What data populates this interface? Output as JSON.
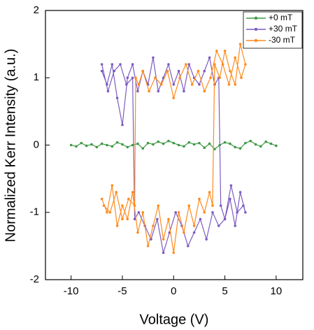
{
  "chart_data": {
    "type": "line",
    "x_label": "Voltage (V)",
    "y_label": "Normalized Kerr Intensity (a.u.)",
    "xlim": [
      -12.5,
      12.6
    ],
    "xticks": [
      -10,
      -5,
      0,
      5,
      10
    ],
    "ylim": [
      -2,
      2
    ],
    "yticks": [
      -2,
      -1,
      0,
      1,
      2
    ],
    "legend": "upper right",
    "series": [
      {
        "name": "+0 mT",
        "color": "#3f9a45",
        "x": [
          -10,
          -9.5,
          -9,
          -8.5,
          -8,
          -7.5,
          -7,
          -6.5,
          -6,
          -5.5,
          -5,
          -4.5,
          -4,
          -3.5,
          -3,
          -2.5,
          -2,
          -1.5,
          -1,
          -0.5,
          0,
          0.5,
          1,
          1.5,
          2,
          2.5,
          3,
          3.5,
          4,
          4.5,
          5,
          5.5,
          6,
          6.5,
          7,
          7.5,
          8,
          8.5,
          9,
          9.5,
          10
        ],
        "values": [
          0,
          -0.02,
          0.03,
          -0.01,
          0.01,
          -0.03,
          0.02,
          0,
          -0.02,
          0.04,
          0.01,
          -0.03,
          0,
          0.02,
          -0.05,
          0.03,
          0.01,
          0.05,
          0.02,
          0.06,
          0.03,
          0,
          -0.02,
          0.04,
          0.01,
          0.03,
          -0.04,
          0.02,
          -0.06,
          0,
          0.04,
          0.02,
          -0.03,
          -0.05,
          0.03,
          0.06,
          0.01,
          -0.02,
          0.05,
          0.02,
          -0.01
        ]
      },
      {
        "name": "+30 mT",
        "color": "#7c5cc2",
        "x": [
          -7,
          -6.5,
          -6,
          -5.5,
          -5,
          -4.5,
          -4,
          -3.5,
          -3,
          -2.5,
          -2,
          -1.5,
          -1,
          -0.5,
          0,
          0.5,
          1,
          1.5,
          2,
          2.5,
          3,
          3.5,
          4,
          4.4,
          4.6,
          5,
          5.5,
          6,
          6.5,
          7,
          6.8,
          6.2,
          5.6,
          5,
          4.4,
          3.8,
          3.2,
          2.6,
          2,
          1.4,
          0.8,
          0.2,
          -0.4,
          -1,
          -1.6,
          -2.2,
          -2.8,
          -3.4,
          -3.8,
          -4,
          -4.6,
          -5.2,
          -5.8,
          -6.4,
          -7
        ],
        "values": [
          1.1,
          0.9,
          1.2,
          0.7,
          0.3,
          1.0,
          1.2,
          0.8,
          1.1,
          0.9,
          1.3,
          0.8,
          1.0,
          1.2,
          0.9,
          1.1,
          0.8,
          1.2,
          1.0,
          0.9,
          1.1,
          1.3,
          0.9,
          1.0,
          -0.9,
          -1.1,
          -0.8,
          -1.2,
          -0.7,
          -1.0,
          -0.9,
          -1.0,
          -0.6,
          -1.1,
          -1.2,
          -1.0,
          -1.4,
          -1.1,
          -1.3,
          -1.5,
          -1.2,
          -1.0,
          -1.3,
          -1.6,
          -1.1,
          -1.4,
          -1.2,
          -1.0,
          -1.1,
          1.0,
          0.9,
          1.2,
          1.1,
          0.8,
          1.2
        ]
      },
      {
        "name": "-30 mT",
        "color": "#ff8a1c",
        "x": [
          -7,
          -6.5,
          -6,
          -5.5,
          -5,
          -4.5,
          -4,
          -3.5,
          -3,
          -2.5,
          -2,
          -1.5,
          -1,
          -0.5,
          0,
          0.5,
          1,
          1.5,
          2,
          2.5,
          3,
          3.5,
          3.8,
          4,
          4.5,
          5,
          5.5,
          6,
          6.5,
          7,
          6.6,
          6,
          5.4,
          4.8,
          4.2,
          3.6,
          3,
          2.4,
          1.8,
          1.2,
          0.6,
          0,
          -0.6,
          -1.2,
          -1.8,
          -2.4,
          -3,
          -3.4,
          -3.7,
          -3.8,
          -4.4,
          -5,
          -5.6,
          -6.2,
          -6.8
        ],
        "values": [
          -0.8,
          -1.0,
          -0.6,
          -1.2,
          -0.9,
          -1.1,
          -0.7,
          -1.3,
          -1.0,
          -1.5,
          -1.2,
          -0.9,
          -1.4,
          -1.1,
          -1.6,
          -1.0,
          -1.3,
          -0.9,
          -1.2,
          -0.8,
          -1.0,
          -0.7,
          -0.9,
          1.2,
          1.0,
          1.4,
          1.1,
          0.9,
          1.5,
          1.2,
          1.0,
          1.3,
          0.9,
          1.2,
          1.4,
          1.0,
          0.8,
          1.1,
          0.9,
          1.2,
          1.0,
          0.7,
          1.1,
          0.9,
          1.0,
          0.8,
          1.1,
          0.9,
          1.0,
          -0.9,
          -0.8,
          -1.1,
          -0.7,
          -1.0,
          -0.9
        ]
      }
    ]
  }
}
